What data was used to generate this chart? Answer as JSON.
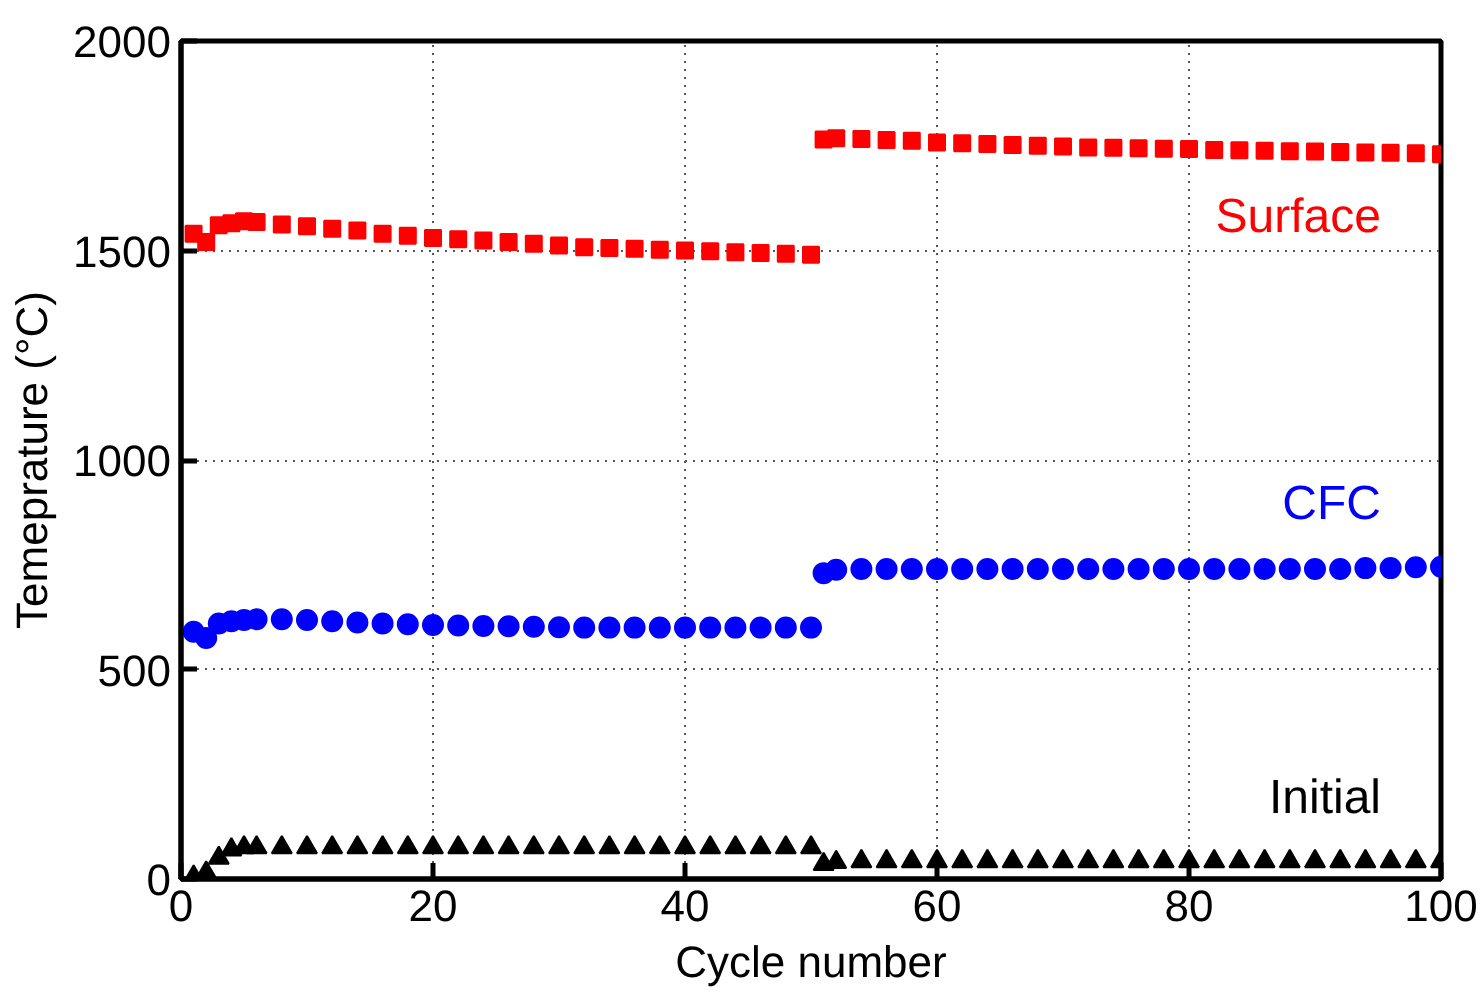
{
  "chart_data": {
    "type": "scatter",
    "xlabel": "Cycle number",
    "ylabel": "Temeprature (°C)",
    "xlim": [
      0,
      100
    ],
    "ylim": [
      0,
      2000
    ],
    "xticks": [
      0,
      20,
      40,
      60,
      80,
      100
    ],
    "yticks": [
      0,
      500,
      1000,
      1500,
      2000
    ],
    "grid": true,
    "legend": false,
    "x": [
      1,
      2,
      3,
      4,
      5,
      6,
      8,
      10,
      12,
      14,
      16,
      18,
      20,
      22,
      24,
      26,
      28,
      30,
      32,
      34,
      36,
      38,
      40,
      42,
      44,
      46,
      48,
      50,
      51,
      52,
      54,
      56,
      58,
      60,
      62,
      64,
      66,
      68,
      70,
      72,
      74,
      76,
      78,
      80,
      82,
      84,
      86,
      88,
      90,
      92,
      94,
      96,
      98,
      100
    ],
    "series": [
      {
        "name": "Surface",
        "color": "#ff0000",
        "marker": "square",
        "values": [
          1540,
          1520,
          1560,
          1565,
          1570,
          1568,
          1562,
          1558,
          1552,
          1548,
          1540,
          1535,
          1530,
          1527,
          1524,
          1520,
          1516,
          1512,
          1508,
          1506,
          1504,
          1502,
          1500,
          1498,
          1496,
          1494,
          1492,
          1490,
          1765,
          1768,
          1766,
          1764,
          1762,
          1758,
          1756,
          1754,
          1752,
          1750,
          1748,
          1746,
          1745,
          1744,
          1743,
          1742,
          1740,
          1739,
          1738,
          1737,
          1736,
          1735,
          1734,
          1733,
          1732,
          1730
        ]
      },
      {
        "name": "CFC",
        "color": "#0000ff",
        "marker": "circle",
        "values": [
          590,
          575,
          610,
          615,
          618,
          620,
          620,
          618,
          615,
          612,
          610,
          608,
          606,
          605,
          604,
          603,
          602,
          601,
          600,
          600,
          600,
          600,
          600,
          600,
          600,
          600,
          600,
          600,
          730,
          738,
          740,
          740,
          740,
          740,
          740,
          740,
          740,
          740,
          740,
          740,
          740,
          740,
          740,
          740,
          740,
          740,
          740,
          740,
          740,
          740,
          742,
          742,
          744,
          745
        ]
      },
      {
        "name": "Initial",
        "color": "#000000",
        "marker": "triangle",
        "values": [
          5,
          15,
          50,
          70,
          75,
          75,
          75,
          75,
          75,
          75,
          75,
          75,
          75,
          75,
          75,
          75,
          75,
          75,
          75,
          75,
          75,
          75,
          75,
          75,
          75,
          75,
          75,
          75,
          35,
          40,
          42,
          42,
          42,
          42,
          42,
          42,
          42,
          42,
          42,
          42,
          42,
          42,
          42,
          42,
          42,
          42,
          42,
          42,
          42,
          42,
          42,
          42,
          42,
          42
        ]
      }
    ]
  }
}
